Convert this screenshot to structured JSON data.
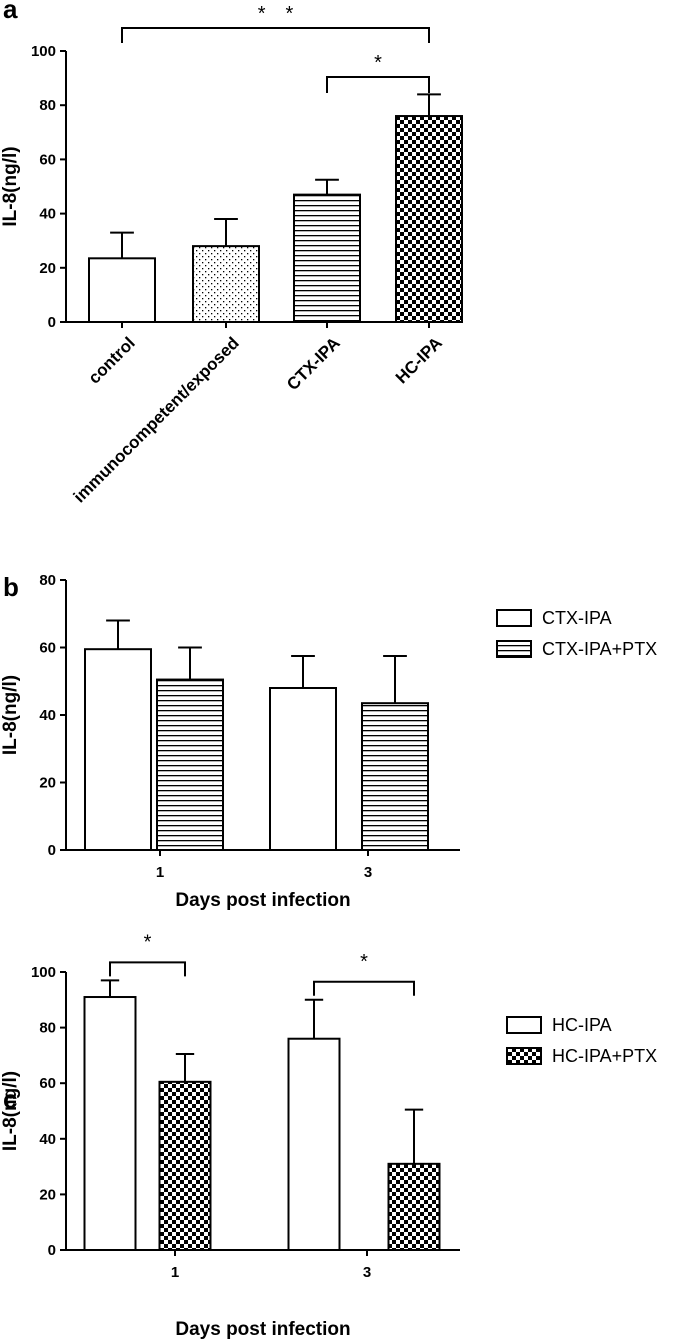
{
  "chart_data": [
    {
      "panel": "a",
      "type": "bar",
      "ylabel": "IL-8(ng/l)",
      "xlabel": "",
      "ylim": [
        0,
        100
      ],
      "yticks": [
        0,
        20,
        40,
        60,
        80,
        100
      ],
      "categories": [
        "control",
        "immunocompetent/exposed",
        "CTX-IPA",
        "HC-IPA"
      ],
      "values": [
        23.5,
        28,
        47,
        76
      ],
      "errors": [
        9.5,
        10,
        5.5,
        8
      ],
      "patterns": [
        "white",
        "dots",
        "hlines",
        "checker"
      ],
      "significance": [
        {
          "from": 0,
          "to": 3,
          "label": "* *"
        },
        {
          "from": 2,
          "to": 3,
          "label": "*"
        }
      ]
    },
    {
      "panel": "b",
      "type": "bar",
      "ylabel": "IL-8(ng/l)",
      "xlabel": "Days post infection",
      "ylim": [
        0,
        80
      ],
      "yticks": [
        0,
        20,
        40,
        60,
        80
      ],
      "categories": [
        "1",
        "3"
      ],
      "series": [
        {
          "name": "CTX-IPA",
          "pattern": "white",
          "values": [
            59.5,
            48
          ],
          "errors": [
            8.5,
            9.5
          ]
        },
        {
          "name": "CTX-IPA+PTX",
          "pattern": "hlines",
          "values": [
            50.5,
            43.5
          ],
          "errors": [
            9.5,
            14
          ]
        }
      ],
      "legend": "right"
    },
    {
      "panel": "c",
      "type": "bar",
      "ylabel": "IL-8(ng/l)",
      "xlabel": "Days post infection",
      "ylim": [
        0,
        100
      ],
      "yticks": [
        0,
        20,
        40,
        60,
        80,
        100
      ],
      "categories": [
        "1",
        "3"
      ],
      "series": [
        {
          "name": "HC-IPA",
          "pattern": "white",
          "values": [
            91,
            76
          ],
          "errors": [
            6,
            14
          ]
        },
        {
          "name": "HC-IPA+PTX",
          "pattern": "checker",
          "values": [
            60.5,
            31
          ],
          "errors": [
            10,
            19.5
          ]
        }
      ],
      "legend": "right",
      "significance": [
        {
          "category": 0,
          "label": "*"
        },
        {
          "category": 1,
          "label": "*"
        }
      ]
    }
  ]
}
